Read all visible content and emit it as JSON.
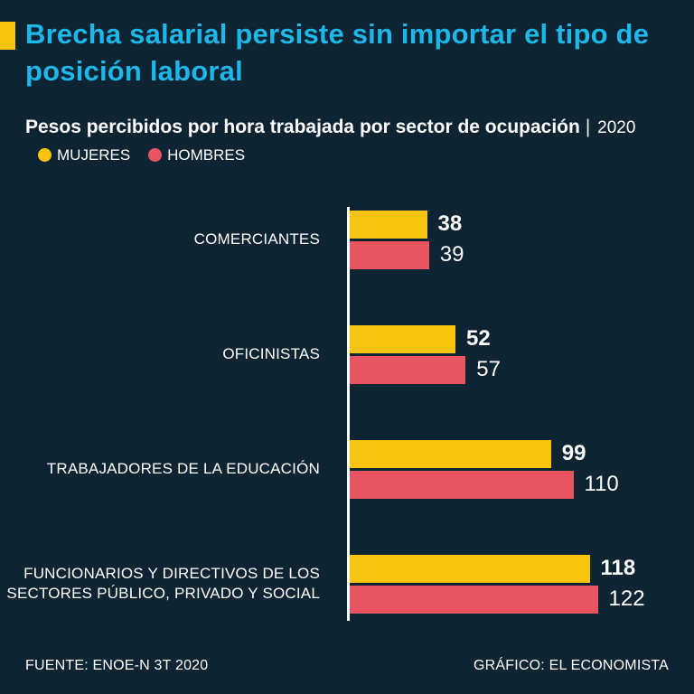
{
  "colors": {
    "background": "#0e2433",
    "title": "#1db7ea",
    "mujeres": "#f9c40f",
    "hombres": "#e85560",
    "text": "#ffffff"
  },
  "header": {
    "title": "Brecha salarial persiste sin importar el tipo de posición laboral"
  },
  "subtitle": {
    "text": "Pesos percibidos por hora trabajada por sector de ocupación",
    "separator": "|",
    "year": "2020"
  },
  "legend": [
    {
      "label": "MUJERES",
      "color": "#f9c40f"
    },
    {
      "label": "HOMBRES",
      "color": "#e85560"
    }
  ],
  "chart_data": {
    "type": "bar",
    "orientation": "horizontal",
    "title": "Pesos percibidos por hora trabajada por sector de ocupación, 2020",
    "categories": [
      "COMERCIANTES",
      "OFICINISTAS",
      "TRABAJADORES DE LA EDUCACIÓN",
      "FUNCIONARIOS Y DIRECTIVOS DE LOS SECTORES PÚBLICO, PRIVADO Y SOCIAL"
    ],
    "series": [
      {
        "name": "MUJERES",
        "color": "#f9c40f",
        "values": [
          38,
          52,
          99,
          118
        ]
      },
      {
        "name": "HOMBRES",
        "color": "#e85560",
        "values": [
          39,
          57,
          110,
          122
        ]
      }
    ],
    "xlim": [
      0,
      130
    ],
    "grid": false,
    "legend_position": "top"
  },
  "footer": {
    "source": "FUENTE: ENOE-N 3T 2020",
    "credit": "GRÁFICO: EL ECONOMISTA"
  }
}
